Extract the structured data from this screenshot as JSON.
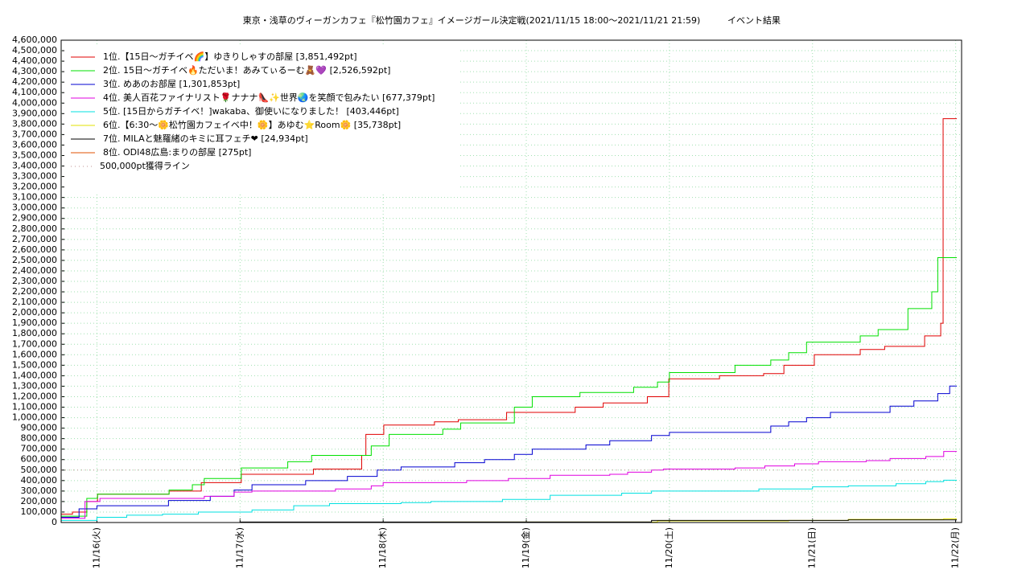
{
  "chart_data": {
    "type": "line",
    "step": true,
    "title": "東京・浅草のヴィーガンカフェ『松竹園カフェ』イメージガール決定戦(2021/11/15 18:00～2021/11/21 21:59)",
    "subtitle": "イベント結果",
    "xlim": [
      18,
      169
    ],
    "xticks": [
      {
        "value": 24,
        "label": "11/16(火)"
      },
      {
        "value": 48,
        "label": "11/17(水)"
      },
      {
        "value": 72,
        "label": "11/18(木)"
      },
      {
        "value": 96,
        "label": "11/19(金)"
      },
      {
        "value": 120,
        "label": "11/20(土)"
      },
      {
        "value": 144,
        "label": "11/21(日)"
      },
      {
        "value": 168,
        "label": "11/22(月)"
      }
    ],
    "ylim": [
      0,
      4600000
    ],
    "yticks": [
      0,
      {
        "value": 100000,
        "label": "100,000"
      },
      {
        "value": 200000,
        "label": "200,000"
      },
      {
        "value": 300000,
        "label": "300,000"
      },
      {
        "value": 400000,
        "label": "400,000"
      },
      {
        "value": 500000,
        "label": "500,000"
      },
      {
        "value": 600000,
        "label": "600,000"
      },
      {
        "value": 700000,
        "label": "700,000"
      },
      {
        "value": 800000,
        "label": "800,000"
      },
      {
        "value": 900000,
        "label": "900,000"
      },
      {
        "value": 1000000,
        "label": "1,000,000"
      },
      {
        "value": 1100000,
        "label": "1,100,000"
      },
      {
        "value": 1200000,
        "label": "1,200,000"
      },
      {
        "value": 1300000,
        "label": "1,300,000"
      },
      {
        "value": 1400000,
        "label": "1,400,000"
      },
      {
        "value": 1500000,
        "label": "1,500,000"
      },
      {
        "value": 1600000,
        "label": "1,600,000"
      },
      {
        "value": 1700000,
        "label": "1,700,000"
      },
      {
        "value": 1800000,
        "label": "1,800,000"
      },
      {
        "value": 1900000,
        "label": "1,900,000"
      },
      {
        "value": 2000000,
        "label": "2,000,000"
      },
      {
        "value": 2100000,
        "label": "2,100,000"
      },
      {
        "value": 2200000,
        "label": "2,200,000"
      },
      {
        "value": 2300000,
        "label": "2,300,000"
      },
      {
        "value": 2400000,
        "label": "2,400,000"
      },
      {
        "value": 2500000,
        "label": "2,500,000"
      },
      {
        "value": 2600000,
        "label": "2,600,000"
      },
      {
        "value": 2700000,
        "label": "2,700,000"
      },
      {
        "value": 2800000,
        "label": "2,800,000"
      },
      {
        "value": 2900000,
        "label": "2,900,000"
      },
      {
        "value": 3000000,
        "label": "3,000,000"
      },
      {
        "value": 3100000,
        "label": "3,100,000"
      },
      {
        "value": 3200000,
        "label": "3,200,000"
      },
      {
        "value": 3300000,
        "label": "3,300,000"
      },
      {
        "value": 3400000,
        "label": "3,400,000"
      },
      {
        "value": 3500000,
        "label": "3,500,000"
      },
      {
        "value": 3600000,
        "label": "3,600,000"
      },
      {
        "value": 3700000,
        "label": "3,700,000"
      },
      {
        "value": 3800000,
        "label": "3,800,000"
      },
      {
        "value": 3900000,
        "label": "3,900,000"
      },
      {
        "value": 4000000,
        "label": "4,000,000"
      },
      {
        "value": 4100000,
        "label": "4,100,000"
      },
      {
        "value": 4200000,
        "label": "4,200,000"
      },
      {
        "value": 4300000,
        "label": "4,300,000"
      },
      {
        "value": 4400000,
        "label": "4,400,000"
      },
      {
        "value": 4500000,
        "label": "4,500,000"
      },
      {
        "value": 4600000,
        "label": "4,600,000"
      }
    ],
    "grid": true,
    "legend": "upper left",
    "series": [
      {
        "name": "1位.【15日～ガチイベ🌈】ゆきりしゃすの部屋 [3,851,492pt]",
        "color": "#e00000",
        "x": [
          18,
          19.9,
          22.3,
          24.1,
          36.1,
          41.5,
          48.2,
          60.3,
          68.4,
          69.1,
          72.1,
          80.6,
          84.6,
          92.7,
          104.2,
          108.9,
          116.3,
          119.9,
          128.4,
          135.8,
          139.2,
          144.3,
          152,
          156.1,
          162.8,
          165.5,
          165.9,
          168.2
        ],
        "values": [
          80000,
          100000,
          200000,
          270000,
          300000,
          380000,
          460000,
          510000,
          640000,
          840000,
          930000,
          960000,
          980000,
          1050000,
          1100000,
          1140000,
          1200000,
          1370000,
          1400000,
          1420000,
          1500000,
          1600000,
          1650000,
          1680000,
          1780000,
          1900000,
          3851492,
          3851492
        ]
      },
      {
        "name": "2位. 15日～ガチイベ🔥ただいま！あみてぃるーむ🧸💜 [2,526,592pt]",
        "color": "#00e000",
        "x": [
          18,
          22.3,
          24.1,
          36.1,
          40,
          42,
          48.2,
          56,
          60,
          70,
          73,
          82,
          85,
          94,
          97,
          105,
          114,
          118,
          120,
          131,
          137,
          140,
          143,
          152,
          155,
          160,
          164,
          165,
          168.2
        ],
        "values": [
          60000,
          230000,
          270000,
          310000,
          360000,
          420000,
          520000,
          580000,
          640000,
          730000,
          840000,
          890000,
          950000,
          1100000,
          1200000,
          1240000,
          1290000,
          1340000,
          1430000,
          1500000,
          1550000,
          1620000,
          1720000,
          1780000,
          1840000,
          2040000,
          2200000,
          2526592,
          2526592
        ]
      },
      {
        "name": "3位. めあのお部屋 [1,301,853pt]",
        "color": "#0000d0",
        "x": [
          18,
          21,
          24,
          36,
          43,
          47,
          50,
          59,
          66,
          71,
          75,
          84,
          89,
          94,
          97,
          106,
          110,
          117,
          120,
          137,
          140,
          143,
          147,
          157,
          161,
          165,
          167,
          168.2
        ],
        "values": [
          50000,
          130000,
          160000,
          210000,
          250000,
          310000,
          360000,
          400000,
          440000,
          500000,
          530000,
          570000,
          600000,
          650000,
          700000,
          740000,
          780000,
          830000,
          860000,
          920000,
          960000,
          1000000,
          1050000,
          1110000,
          1160000,
          1230000,
          1301853,
          1301853
        ]
      },
      {
        "name": "4位. 美人百花ファイナリスト🌹ナナナ👠✨世界🌏を笑顔で包みたい [677,379pt]",
        "color": "#e000e0",
        "x": [
          18,
          22,
          24.5,
          42,
          47,
          50,
          64,
          70,
          72,
          86,
          93,
          100,
          110,
          113,
          117,
          119,
          131,
          136,
          141,
          145,
          153,
          157,
          163,
          166,
          168.2
        ],
        "values": [
          40000,
          200000,
          230000,
          250000,
          290000,
          300000,
          320000,
          350000,
          380000,
          400000,
          420000,
          450000,
          460000,
          480000,
          500000,
          510000,
          520000,
          540000,
          560000,
          580000,
          590000,
          610000,
          630000,
          677379,
          677379
        ]
      },
      {
        "name": "5位. [15日からガチイベ！]wakaba、御使いになりました！ [403,446pt]",
        "color": "#00e0e0",
        "x": [
          18,
          24,
          29,
          35,
          41,
          50,
          57,
          63,
          75,
          80,
          92,
          100,
          112,
          117,
          135,
          144,
          150,
          158,
          163,
          166,
          168.2
        ],
        "values": [
          20000,
          50000,
          70000,
          80000,
          100000,
          120000,
          160000,
          180000,
          190000,
          200000,
          220000,
          260000,
          280000,
          300000,
          320000,
          340000,
          350000,
          370000,
          390000,
          403446,
          403446
        ]
      },
      {
        "name": "6位.【6:30～🌼松竹園カフェイベ中！🌼】あゆむ⭐Room🌼 [35,738pt]",
        "color": "#e0e000",
        "x": [
          18,
          80,
          118,
          140,
          150,
          166,
          168.2
        ],
        "values": [
          0,
          5000,
          15000,
          20000,
          30000,
          35738,
          35738
        ]
      },
      {
        "name": "7位. MILAと魅羅緒のキミに耳フェチ❤ [24,934pt]",
        "color": "#000000",
        "x": [
          18,
          48,
          117,
          150,
          168.2
        ],
        "values": [
          0,
          5000,
          20000,
          24934,
          24934
        ]
      },
      {
        "name": "8位. ODI48広島:まりの部屋 [275pt]",
        "color": "#e05000",
        "x": [
          18,
          168.2
        ],
        "values": [
          0,
          275
        ]
      },
      {
        "name": "500,000pt獲得ライン",
        "color": "#c09090",
        "dash": true,
        "x": [
          18,
          168.2
        ],
        "values": [
          500000,
          500000
        ]
      }
    ]
  }
}
